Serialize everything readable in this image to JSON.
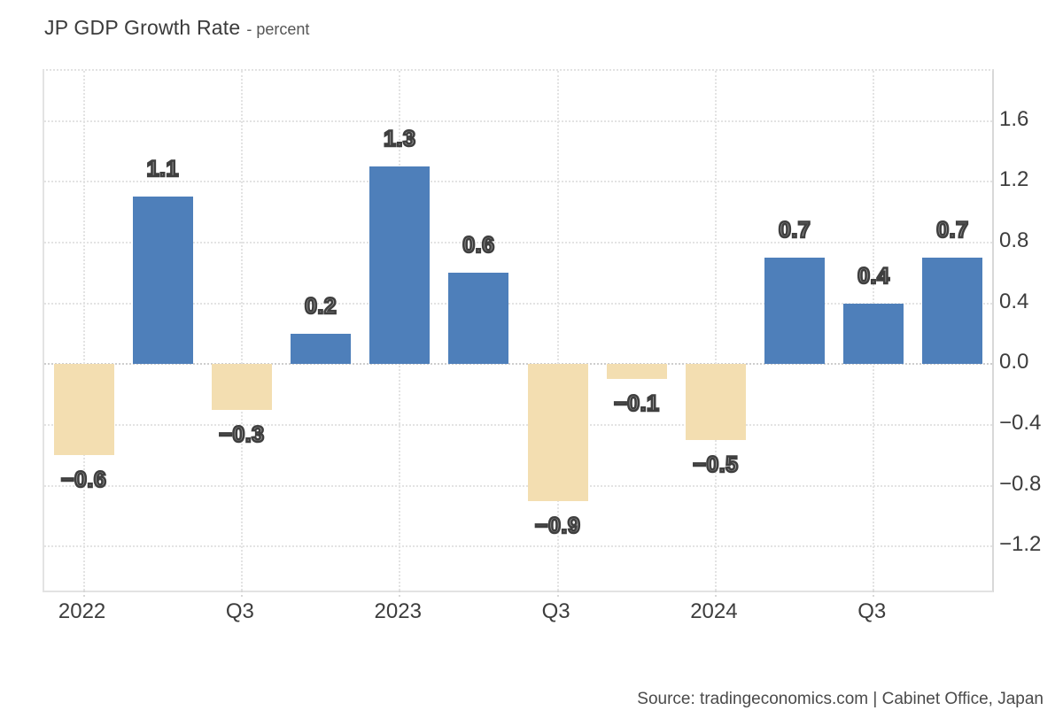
{
  "header": {
    "title": "JP GDP Growth Rate",
    "subtitle": "- percent"
  },
  "source_note": "Source: tradingeconomics.com | Cabinet Office, Japan",
  "chart_data": {
    "type": "bar",
    "title": "JP GDP Growth Rate",
    "ylabel": "percent",
    "xlabel": "",
    "grid": "dotted",
    "legend": "none",
    "ylim": [
      -1.49,
      1.93
    ],
    "categories": [
      "2022 Q1",
      "2022 Q2",
      "2022 Q3",
      "2022 Q4",
      "2023 Q1",
      "2023 Q2",
      "2023 Q3",
      "2023 Q4",
      "2024 Q1",
      "2024 Q2",
      "2024 Q3",
      "2024 Q4"
    ],
    "values": [
      -0.6,
      1.1,
      -0.3,
      0.2,
      1.3,
      0.6,
      -0.9,
      -0.1,
      -0.5,
      0.7,
      0.4,
      0.7
    ],
    "bar_labels": [
      "−0.6",
      "1.1",
      "−0.3",
      "0.2",
      "1.3",
      "0.6",
      "−0.9",
      "−0.1",
      "−0.5",
      "0.7",
      "0.4",
      "0.7"
    ],
    "x_ticks": [
      {
        "index": 0,
        "label": "2022"
      },
      {
        "index": 2,
        "label": "Q3"
      },
      {
        "index": 4,
        "label": "2023"
      },
      {
        "index": 6,
        "label": "Q3"
      },
      {
        "index": 8,
        "label": "2024"
      },
      {
        "index": 10,
        "label": "Q3"
      }
    ],
    "y_ticks": [
      {
        "value": 1.6,
        "label": "1.6"
      },
      {
        "value": 1.2,
        "label": "1.2"
      },
      {
        "value": 0.8,
        "label": "0.8"
      },
      {
        "value": 0.4,
        "label": "0.4"
      },
      {
        "value": 0.0,
        "label": "0.0"
      },
      {
        "value": -0.4,
        "label": "−0.4"
      },
      {
        "value": -0.8,
        "label": "−0.8"
      },
      {
        "value": -1.2,
        "label": "−1.2"
      }
    ],
    "colors": {
      "positive_bar": "#4e7fba",
      "negative_bar": "#f3deb1"
    }
  }
}
